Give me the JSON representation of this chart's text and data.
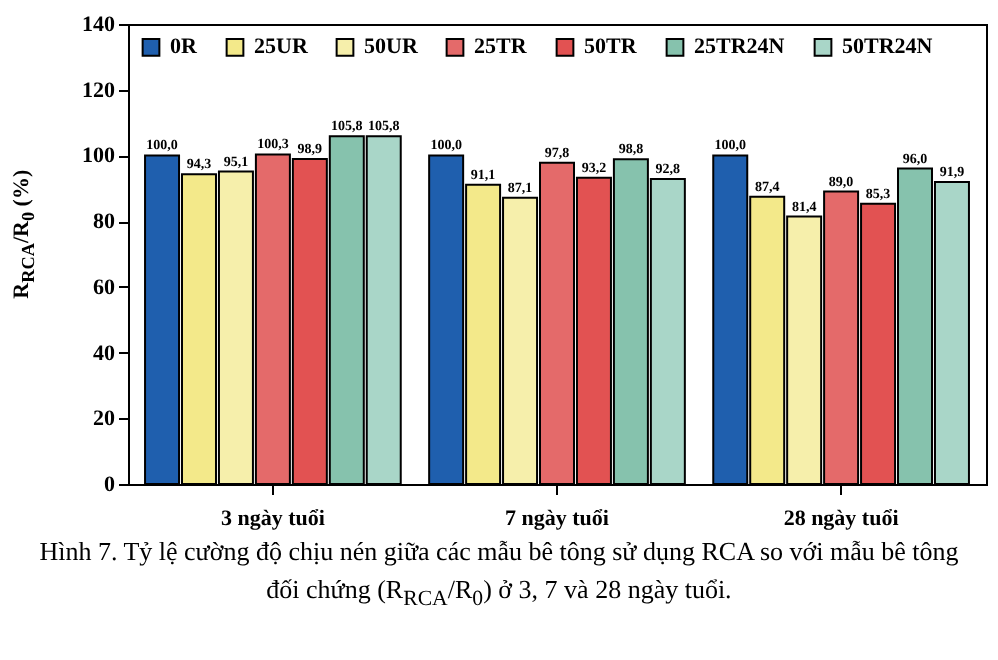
{
  "chart_data": {
    "type": "bar",
    "categories": [
      "3 ngày tuổi",
      "7 ngày tuổi",
      "28 ngày tuổi"
    ],
    "series": [
      {
        "name": "0R",
        "color": "#1f5fae",
        "values": [
          100.0,
          100.0,
          100.0
        ],
        "value_labels": [
          "100,0",
          "100,0",
          "100,0"
        ]
      },
      {
        "name": "25UR",
        "color": "#f3e98a",
        "values": [
          94.3,
          91.1,
          87.4
        ],
        "value_labels": [
          "94,3",
          "91,1",
          "87,4"
        ]
      },
      {
        "name": "50UR",
        "color": "#f6efab",
        "values": [
          95.1,
          87.1,
          81.4
        ],
        "value_labels": [
          "95,1",
          "87,1",
          "81,4"
        ]
      },
      {
        "name": "25TR",
        "color": "#e46a6a",
        "values": [
          100.3,
          97.8,
          89.0
        ],
        "value_labels": [
          "100,3",
          "97,8",
          "89,0"
        ]
      },
      {
        "name": "50TR",
        "color": "#e25252",
        "values": [
          98.9,
          93.2,
          85.3
        ],
        "value_labels": [
          "98,9",
          "93,2",
          "85,3"
        ]
      },
      {
        "name": "25TR24N",
        "color": "#86c2ad",
        "values": [
          105.8,
          98.8,
          96.0
        ],
        "value_labels": [
          "105,8",
          "98,8",
          "96,0"
        ]
      },
      {
        "name": "50TR24N",
        "color": "#a9d6c8",
        "values": [
          105.8,
          92.8,
          91.9
        ],
        "value_labels": [
          "105,8",
          "92,8",
          "91,9"
        ]
      }
    ],
    "ylabel": "R$_{RCA}$/R$_{0}$ (%)",
    "ylim": [
      0,
      140
    ],
    "yticks": [
      0,
      20,
      40,
      60,
      80,
      100,
      120,
      140
    ],
    "grid": false,
    "legend": "top",
    "annotations": [
      "Hình 7. Tỷ lệ cường độ chịu nén giữa các mẫu bê tông sử dụng RCA so với mẫu bê tông đối chứng (R$_{RCA}$/R$_{0}$) ở 3, 7 và 28 ngày tuổi."
    ]
  }
}
